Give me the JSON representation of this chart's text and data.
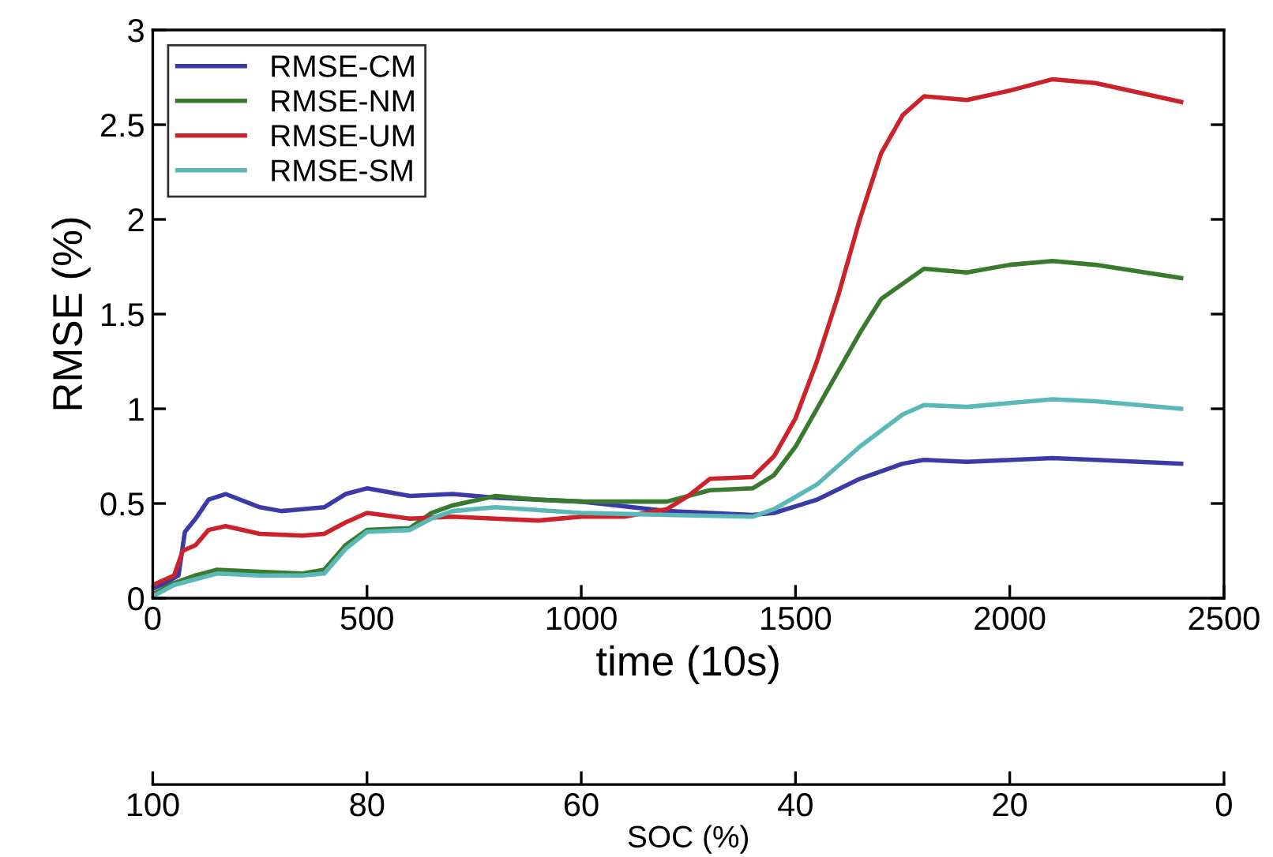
{
  "chart_data": {
    "type": "line",
    "xlabel": "time (10s)",
    "ylabel": "RMSE (%)",
    "x2label": "SOC (%)",
    "xlim": [
      0,
      2500
    ],
    "xticks": [
      0,
      500,
      1000,
      1500,
      2000,
      2500
    ],
    "ylim": [
      0,
      3
    ],
    "yticks": [
      0,
      0.5,
      1,
      1.5,
      2,
      2.5,
      3
    ],
    "x2lim": [
      100,
      0
    ],
    "x2ticks": [
      100,
      80,
      60,
      40,
      20,
      0
    ],
    "legend": "top left",
    "grid": false,
    "marker": "none",
    "line_style": "solid",
    "series": [
      {
        "name": "RMSE-CM",
        "color": "#3b3ba8",
        "x": [
          0,
          30,
          60,
          75,
          100,
          130,
          170,
          250,
          300,
          350,
          400,
          450,
          500,
          600,
          700,
          800,
          1000,
          1200,
          1400,
          1450,
          1550,
          1650,
          1750,
          1800,
          1900,
          2100,
          2200,
          2400
        ],
        "values": [
          0.05,
          0.08,
          0.12,
          0.35,
          0.42,
          0.52,
          0.55,
          0.48,
          0.46,
          0.47,
          0.48,
          0.55,
          0.58,
          0.54,
          0.55,
          0.53,
          0.51,
          0.46,
          0.44,
          0.45,
          0.52,
          0.63,
          0.71,
          0.73,
          0.72,
          0.74,
          0.73,
          0.71
        ]
      },
      {
        "name": "RMSE-NM",
        "color": "#3a7a2e",
        "x": [
          0,
          50,
          100,
          150,
          250,
          350,
          400,
          450,
          500,
          600,
          650,
          700,
          800,
          900,
          1000,
          1200,
          1300,
          1400,
          1450,
          1500,
          1550,
          1600,
          1650,
          1700,
          1800,
          1900,
          2000,
          2100,
          2200,
          2400
        ],
        "values": [
          0.02,
          0.08,
          0.12,
          0.15,
          0.14,
          0.13,
          0.15,
          0.28,
          0.36,
          0.37,
          0.45,
          0.49,
          0.54,
          0.52,
          0.51,
          0.51,
          0.57,
          0.58,
          0.65,
          0.8,
          1.0,
          1.2,
          1.4,
          1.58,
          1.74,
          1.72,
          1.76,
          1.78,
          1.76,
          1.69
        ]
      },
      {
        "name": "RMSE-UM",
        "color": "#cc2229",
        "x": [
          0,
          50,
          70,
          100,
          130,
          170,
          250,
          350,
          400,
          450,
          500,
          600,
          700,
          800,
          900,
          1000,
          1100,
          1200,
          1250,
          1300,
          1400,
          1450,
          1500,
          1550,
          1600,
          1650,
          1700,
          1750,
          1800,
          1900,
          2000,
          2100,
          2200,
          2400
        ],
        "values": [
          0.07,
          0.12,
          0.25,
          0.28,
          0.36,
          0.38,
          0.34,
          0.33,
          0.34,
          0.4,
          0.45,
          0.42,
          0.43,
          0.42,
          0.41,
          0.43,
          0.43,
          0.47,
          0.54,
          0.63,
          0.64,
          0.75,
          0.95,
          1.25,
          1.6,
          2.0,
          2.35,
          2.55,
          2.65,
          2.63,
          2.68,
          2.74,
          2.72,
          2.62
        ]
      },
      {
        "name": "RMSE-SM",
        "color": "#5bb8b8",
        "x": [
          0,
          50,
          100,
          150,
          250,
          350,
          400,
          450,
          500,
          600,
          650,
          700,
          800,
          1000,
          1200,
          1400,
          1450,
          1550,
          1650,
          1750,
          1800,
          1900,
          2100,
          2200,
          2400
        ],
        "values": [
          0.01,
          0.07,
          0.1,
          0.13,
          0.12,
          0.12,
          0.13,
          0.26,
          0.35,
          0.36,
          0.42,
          0.46,
          0.48,
          0.45,
          0.44,
          0.43,
          0.47,
          0.6,
          0.8,
          0.97,
          1.02,
          1.01,
          1.05,
          1.04,
          1.0
        ]
      }
    ]
  }
}
